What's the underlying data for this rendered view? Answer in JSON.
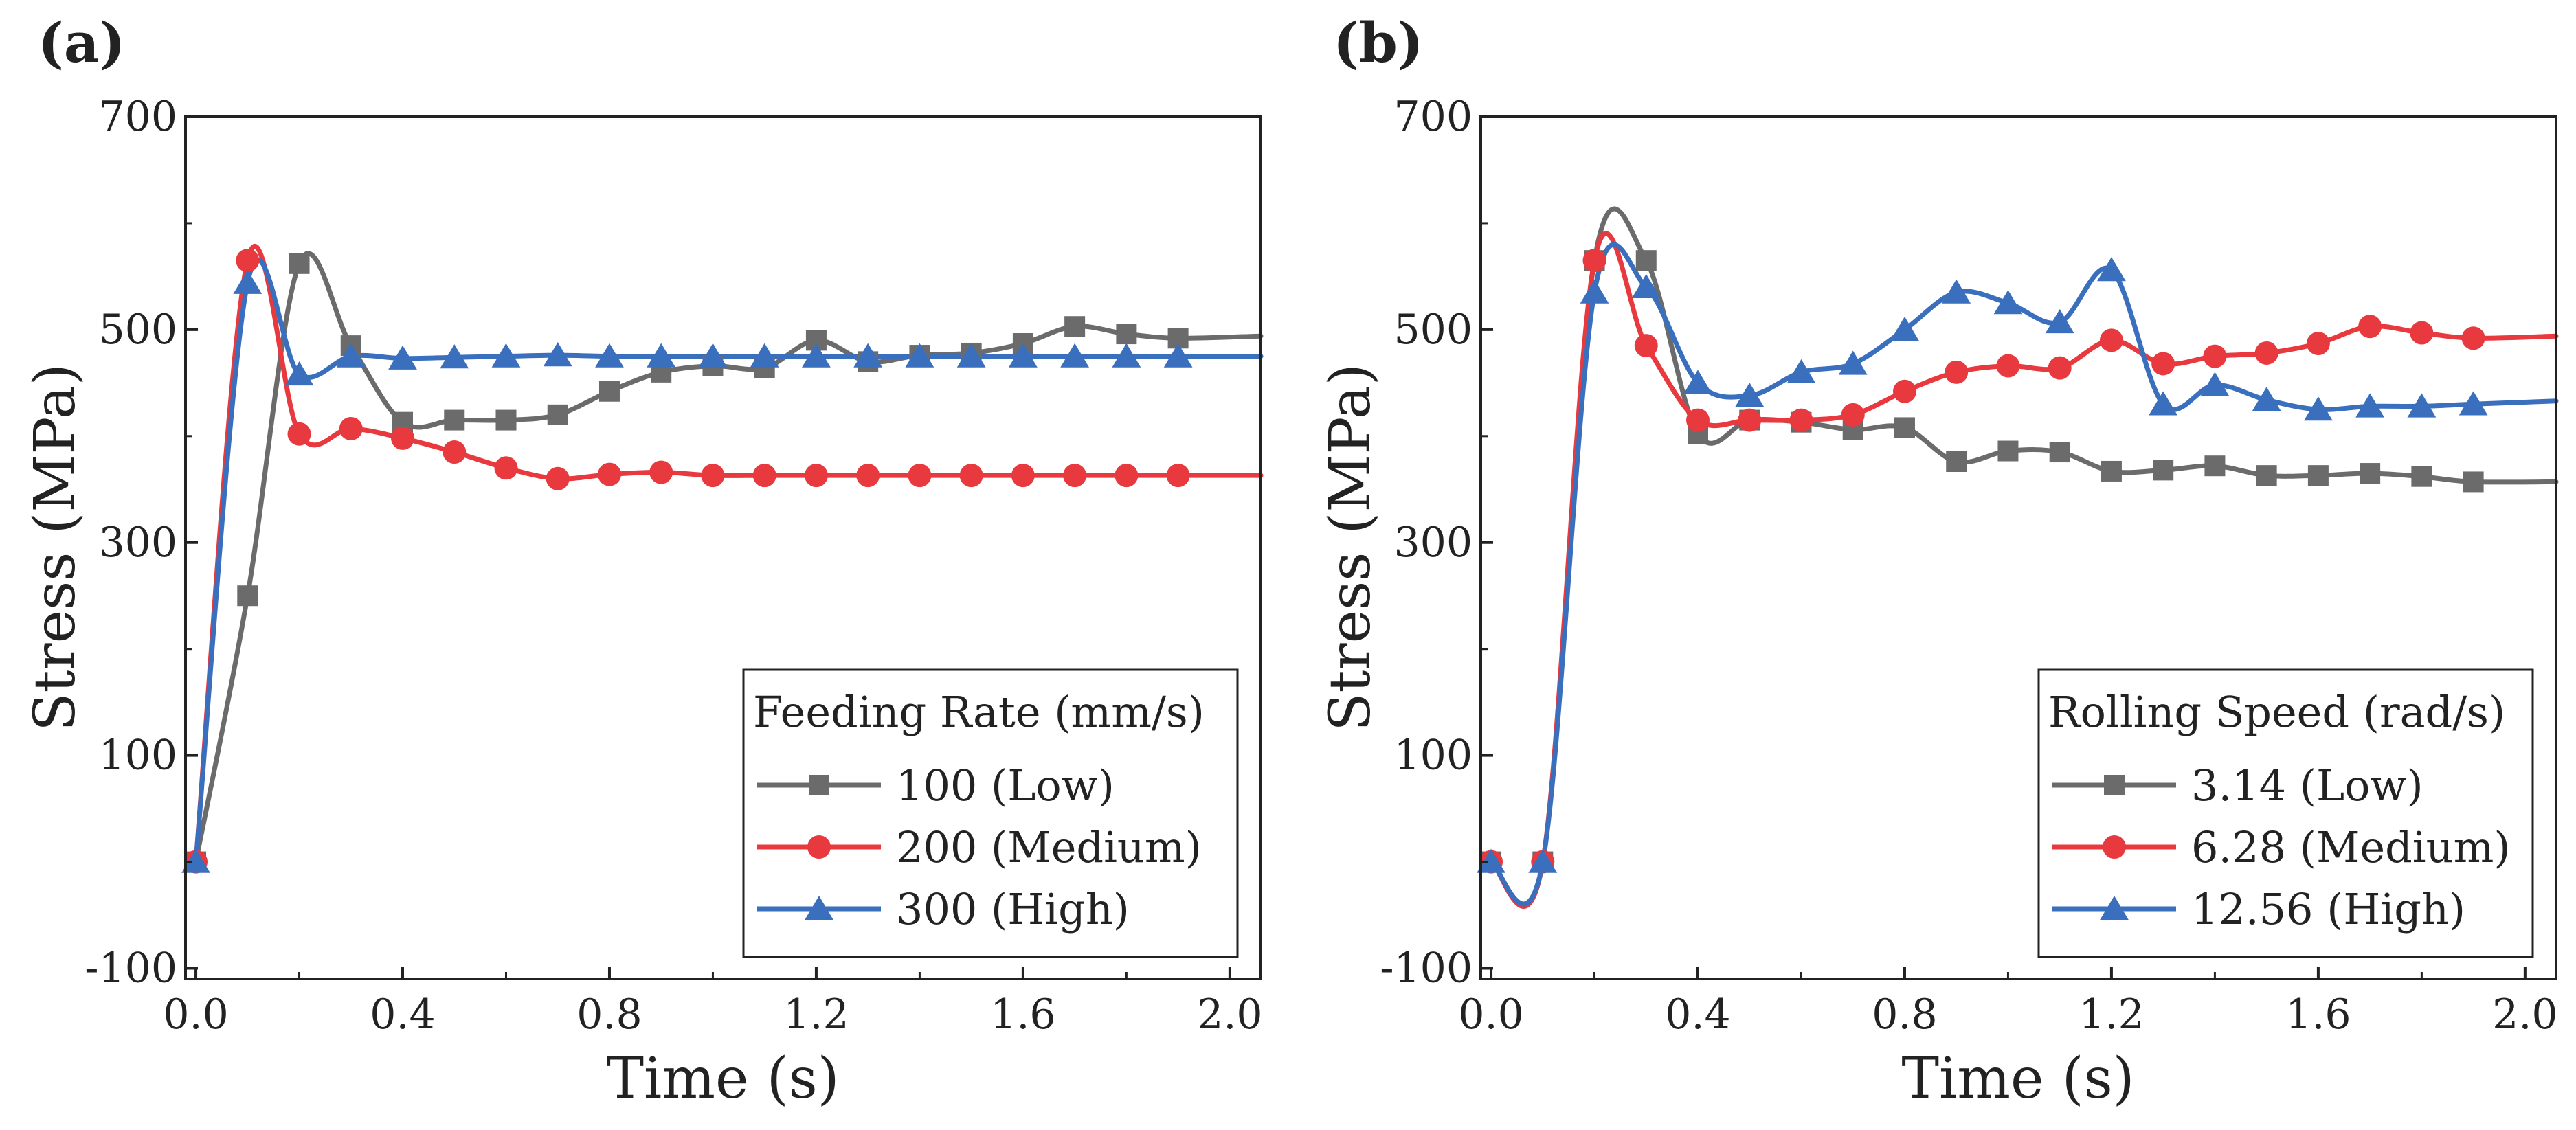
{
  "chart_data": [
    {
      "type": "line",
      "panel_label": "(a)",
      "title": "",
      "xlabel": "Time (s)",
      "ylabel": "Stress (MPa)",
      "xlim": [
        -0.02,
        2.06
      ],
      "ylim": [
        -110,
        700
      ],
      "xticks": [
        "0.0",
        "0.4",
        "0.8",
        "1.2",
        "1.6",
        "2.0"
      ],
      "xtick_values": [
        0.0,
        0.4,
        0.8,
        1.2,
        1.6,
        2.0
      ],
      "yticks": [
        "-100",
        "100",
        "300",
        "500",
        "700"
      ],
      "ytick_values": [
        -100,
        100,
        300,
        500,
        700
      ],
      "grid": false,
      "legend": {
        "title": "Feeding Rate (mm/s)",
        "placement": "bottom-right"
      },
      "series": [
        {
          "name": "100 (Low)",
          "color": "#6b6b6b",
          "marker": "square",
          "points": [
            [
              0.0,
              0
            ],
            [
              0.1,
              250
            ],
            [
              0.2,
              562
            ],
            [
              0.3,
              485
            ],
            [
              0.4,
              413
            ],
            [
              0.5,
              415
            ],
            [
              0.6,
              415
            ],
            [
              0.7,
              420
            ],
            [
              0.8,
              442
            ],
            [
              0.9,
              460
            ],
            [
              1.0,
              466
            ],
            [
              1.1,
              464
            ],
            [
              1.2,
              490
            ],
            [
              1.3,
              470
            ],
            [
              1.4,
              476
            ],
            [
              1.5,
              478
            ],
            [
              1.6,
              487
            ],
            [
              1.7,
              503
            ],
            [
              1.8,
              496
            ],
            [
              1.9,
              492
            ],
            [
              2.06,
              494
            ]
          ]
        },
        {
          "name": "200 (Medium)",
          "color": "#e8393f",
          "marker": "circle",
          "points": [
            [
              0.0,
              0
            ],
            [
              0.1,
              565
            ],
            [
              0.2,
              402
            ],
            [
              0.3,
              407
            ],
            [
              0.4,
              398
            ],
            [
              0.5,
              385
            ],
            [
              0.6,
              370
            ],
            [
              0.7,
              360
            ],
            [
              0.8,
              364
            ],
            [
              0.9,
              366
            ],
            [
              1.0,
              363
            ],
            [
              1.1,
              363
            ],
            [
              1.2,
              363
            ],
            [
              1.3,
              363
            ],
            [
              1.4,
              363
            ],
            [
              1.5,
              363
            ],
            [
              1.6,
              363
            ],
            [
              1.7,
              363
            ],
            [
              1.8,
              363
            ],
            [
              1.9,
              363
            ],
            [
              2.06,
              363
            ]
          ]
        },
        {
          "name": "300 (High)",
          "color": "#3a6fbe",
          "marker": "triangle",
          "points": [
            [
              0.0,
              0
            ],
            [
              0.1,
              544
            ],
            [
              0.2,
              458
            ],
            [
              0.3,
              475
            ],
            [
              0.4,
              473
            ],
            [
              0.5,
              474
            ],
            [
              0.6,
              475
            ],
            [
              0.7,
              476
            ],
            [
              0.8,
              475
            ],
            [
              0.9,
              475
            ],
            [
              1.0,
              475
            ],
            [
              1.1,
              475
            ],
            [
              1.2,
              475
            ],
            [
              1.3,
              475
            ],
            [
              1.4,
              475
            ],
            [
              1.5,
              475
            ],
            [
              1.6,
              475
            ],
            [
              1.7,
              475
            ],
            [
              1.8,
              475
            ],
            [
              1.9,
              475
            ],
            [
              2.06,
              475
            ]
          ]
        }
      ]
    },
    {
      "type": "line",
      "panel_label": "(b)",
      "title": "",
      "xlabel": "Time (s)",
      "ylabel": "Stress (MPa)",
      "xlim": [
        -0.02,
        2.06
      ],
      "ylim": [
        -110,
        700
      ],
      "xticks": [
        "0.0",
        "0.4",
        "0.8",
        "1.2",
        "1.6",
        "2.0"
      ],
      "xtick_values": [
        0.0,
        0.4,
        0.8,
        1.2,
        1.6,
        2.0
      ],
      "yticks": [
        "-100",
        "100",
        "300",
        "500",
        "700"
      ],
      "ytick_values": [
        -100,
        100,
        300,
        500,
        700
      ],
      "grid": false,
      "legend": {
        "title": "Rolling Speed (rad/s)",
        "placement": "bottom-right"
      },
      "series": [
        {
          "name": "3.14 (Low)",
          "color": "#6b6b6b",
          "marker": "square",
          "points": [
            [
              0.0,
              0
            ],
            [
              0.1,
              0
            ],
            [
              0.2,
              565
            ],
            [
              0.3,
              565
            ],
            [
              0.4,
              402
            ],
            [
              0.5,
              415
            ],
            [
              0.6,
              413
            ],
            [
              0.7,
              406
            ],
            [
              0.8,
              408
            ],
            [
              0.9,
              376
            ],
            [
              1.0,
              386
            ],
            [
              1.1,
              385
            ],
            [
              1.2,
              367
            ],
            [
              1.3,
              368
            ],
            [
              1.4,
              372
            ],
            [
              1.5,
              363
            ],
            [
              1.6,
              363
            ],
            [
              1.7,
              365
            ],
            [
              1.8,
              362
            ],
            [
              1.9,
              357
            ],
            [
              2.06,
              357
            ]
          ]
        },
        {
          "name": "6.28 (Medium)",
          "color": "#e8393f",
          "marker": "circle",
          "points": [
            [
              0.0,
              0
            ],
            [
              0.1,
              0
            ],
            [
              0.2,
              565
            ],
            [
              0.3,
              485
            ],
            [
              0.4,
              415
            ],
            [
              0.5,
              415
            ],
            [
              0.6,
              415
            ],
            [
              0.7,
              420
            ],
            [
              0.8,
              442
            ],
            [
              0.9,
              460
            ],
            [
              1.0,
              466
            ],
            [
              1.1,
              464
            ],
            [
              1.2,
              490
            ],
            [
              1.3,
              468
            ],
            [
              1.4,
              475
            ],
            [
              1.5,
              478
            ],
            [
              1.6,
              487
            ],
            [
              1.7,
              503
            ],
            [
              1.8,
              497
            ],
            [
              1.9,
              492
            ],
            [
              2.06,
              494
            ]
          ]
        },
        {
          "name": "12.56 (High)",
          "color": "#3a6fbe",
          "marker": "triangle",
          "points": [
            [
              0.0,
              0
            ],
            [
              0.1,
              0
            ],
            [
              0.2,
              535
            ],
            [
              0.3,
              540
            ],
            [
              0.4,
              450
            ],
            [
              0.5,
              438
            ],
            [
              0.6,
              460
            ],
            [
              0.7,
              468
            ],
            [
              0.8,
              500
            ],
            [
              0.9,
              535
            ],
            [
              1.0,
              525
            ],
            [
              1.1,
              507
            ],
            [
              1.2,
              556
            ],
            [
              1.3,
              430
            ],
            [
              1.4,
              448
            ],
            [
              1.5,
              434
            ],
            [
              1.6,
              425
            ],
            [
              1.7,
              428
            ],
            [
              1.8,
              428
            ],
            [
              1.9,
              430
            ],
            [
              2.06,
              433
            ]
          ]
        }
      ]
    }
  ]
}
